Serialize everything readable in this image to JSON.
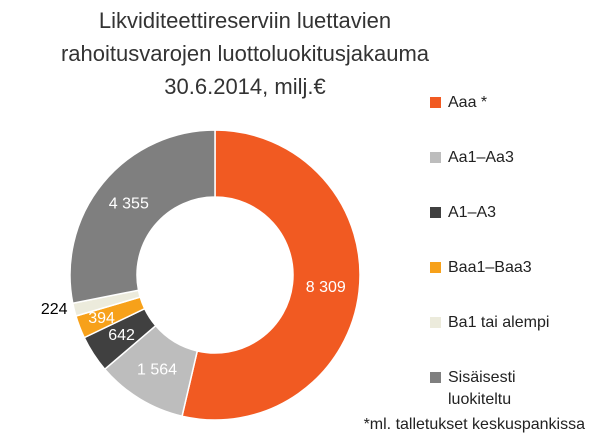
{
  "chart_data": {
    "type": "donut",
    "title": [
      "Likviditeettireserviin luettavien",
      "rahoitusvarojen luottoluokitusjakauma",
      "30.6.2014, milj.€"
    ],
    "categories": [
      "Aaa *",
      "Aa1–Aa3",
      "A1–A3",
      "Baa1–Baa3",
      "Ba1 tai alempi",
      "Sisäisesti luokiteltu"
    ],
    "values": [
      8309,
      1564,
      642,
      394,
      224,
      4355
    ],
    "value_labels": [
      "8 309",
      "1 564",
      "642",
      "394",
      "224",
      "4 355"
    ],
    "colors": [
      "#f15a22",
      "#bdbdbd",
      "#404040",
      "#f7a11a",
      "#ecebdc",
      "#7f7f7f"
    ],
    "footnote": "*ml. talletukset keskuspankissa"
  }
}
